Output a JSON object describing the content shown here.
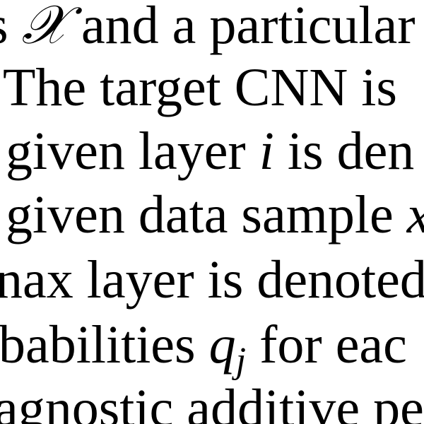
{
  "lines": [
    [
      "s ",
      "𝒳",
      " and a particular"
    ],
    [
      "The target CNN is"
    ],
    [
      "given layer ",
      "i",
      " is den"
    ],
    [
      "given data sample ",
      "x"
    ],
    [
      "nax layer is denoted"
    ],
    [
      "babilities ",
      "q",
      "j",
      " for eac"
    ],
    [
      "agnostic additive pe"
    ]
  ]
}
